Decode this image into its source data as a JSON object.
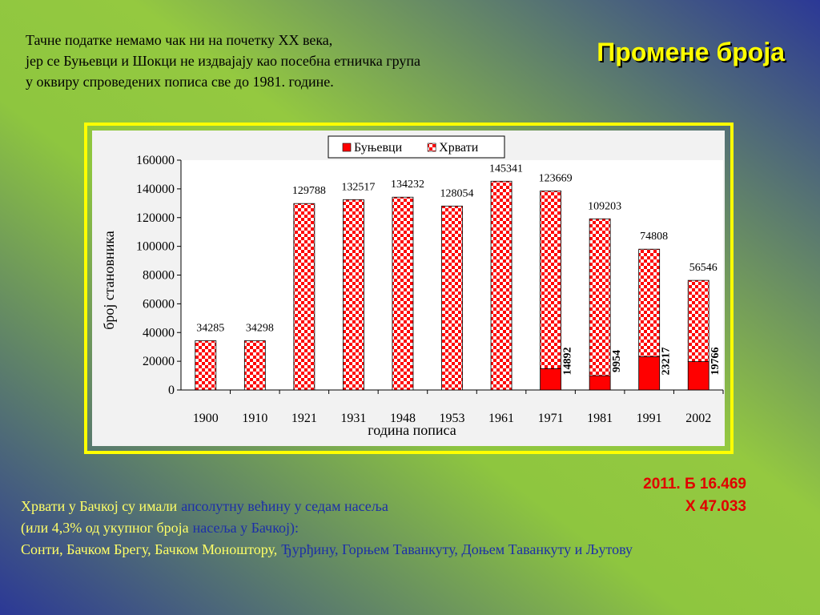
{
  "slide": {
    "title": "Промене броја",
    "intro": [
      "Тачне податке немамо чак ни на почетку XX века,",
      "јер се Буњевци и Шокци не издвајају као посебна етничка група",
      "у оквиру спроведених пописа све до 1981. године."
    ],
    "note": [
      "2011. Б 16.469",
      "Х 47.033"
    ],
    "footer": [
      [
        "Хрвати у Бачкој су имали",
        "апсолутну већину у седам насеља"
      ],
      [
        "(или 4,3% од укупног броја",
        "насеља у Бачкој):"
      ],
      [
        "Сонти, Бачком Брегу, Бачком Моноштору,",
        "Ђурђину, Горњем Таванкуту, Доњем Таванкуту и Љутову"
      ]
    ]
  },
  "chart_data": {
    "type": "bar",
    "stacked": true,
    "xlabel": "година пописа",
    "ylabel": "број становника",
    "categories": [
      "1900",
      "1910",
      "1921",
      "1931",
      "1948",
      "1953",
      "1961",
      "1971",
      "1981",
      "1991",
      "2002"
    ],
    "series": [
      {
        "name": "Буњевци",
        "color": "#ff0000",
        "pattern": "solid",
        "values": [
          null,
          null,
          null,
          null,
          null,
          null,
          null,
          14892,
          9954,
          23217,
          19766
        ]
      },
      {
        "name": "Хрвати",
        "color": "#ff0000",
        "pattern": "checker",
        "values": [
          34285,
          34298,
          129788,
          132517,
          134232,
          128054,
          145341,
          123669,
          109203,
          74808,
          56546
        ]
      }
    ],
    "ylim": [
      0,
      160000
    ],
    "yticks": [
      0,
      20000,
      40000,
      60000,
      80000,
      100000,
      120000,
      140000,
      160000
    ],
    "legend": "top"
  }
}
